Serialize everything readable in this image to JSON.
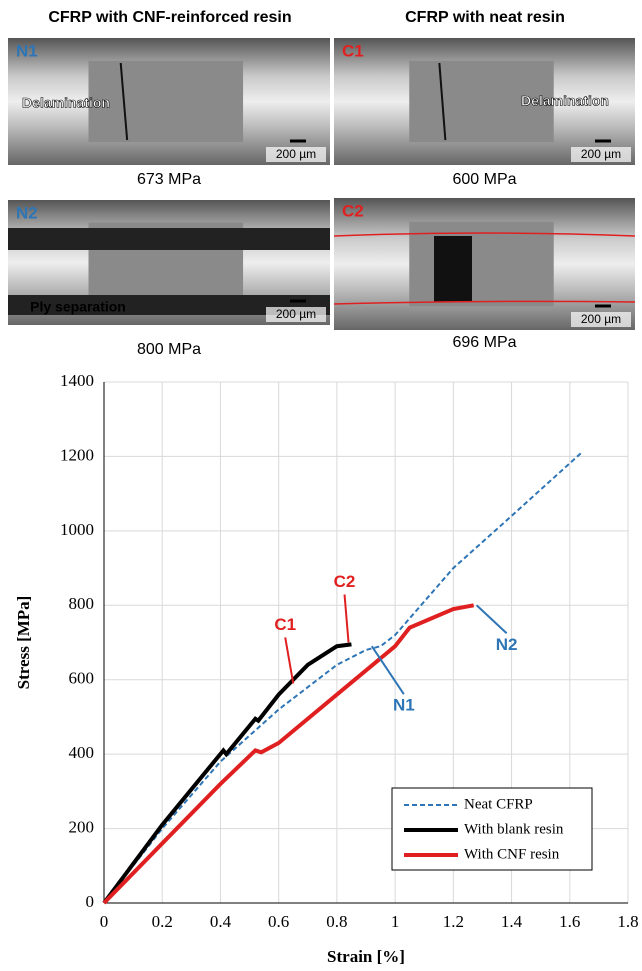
{
  "panels": {
    "left_header": "CFRP with CNF-reinforced resin",
    "right_header": "CFRP with neat resin",
    "items": [
      {
        "label": "N1",
        "color": "#2E75B6",
        "note": "Delamination",
        "scale": "200 µm",
        "caption": "673 MPa"
      },
      {
        "label": "C1",
        "color": "#E02020",
        "note": "Delamination",
        "scale": "200 µm",
        "caption": "600 MPa"
      },
      {
        "label": "N2",
        "color": "#2E75B6",
        "note": "Ply separation",
        "scale": "200 µm",
        "caption": "800 MPa"
      },
      {
        "label": "C2",
        "color": "#E02020",
        "scale": "200 µm",
        "caption": "696 MPa"
      }
    ]
  },
  "chart_data": {
    "type": "line",
    "xlabel": "Strain [%]",
    "ylabel": "Stress [MPa]",
    "xlim": [
      0,
      1.8
    ],
    "ylim": [
      0,
      1400
    ],
    "xticks": [
      0,
      0.2,
      0.4,
      0.6,
      0.8,
      1,
      1.2,
      1.4,
      1.6,
      1.8
    ],
    "yticks": [
      0,
      200,
      400,
      600,
      800,
      1000,
      1200,
      1400
    ],
    "grid": true,
    "legend": "lower right",
    "series": [
      {
        "name": "Neat CFRP",
        "color": "#2E75B6",
        "dashed": true,
        "x": [
          0,
          0.2,
          0.4,
          0.6,
          0.8,
          0.9,
          0.95,
          1.0,
          1.2,
          1.4,
          1.64
        ],
        "values": [
          0,
          200,
          380,
          520,
          640,
          680,
          690,
          720,
          900,
          1040,
          1210
        ]
      },
      {
        "name": "With blank resin",
        "color": "#000000",
        "dashed": false,
        "x": [
          0,
          0.2,
          0.41,
          0.42,
          0.52,
          0.53,
          0.6,
          0.7,
          0.8,
          0.85
        ],
        "values": [
          0,
          210,
          410,
          400,
          495,
          490,
          560,
          640,
          690,
          695
        ]
      },
      {
        "name": "With CNF resin",
        "color": "#E02020",
        "dashed": false,
        "x": [
          0,
          0.2,
          0.4,
          0.52,
          0.54,
          0.6,
          0.8,
          1.0,
          1.05,
          1.2,
          1.27
        ],
        "values": [
          0,
          160,
          320,
          410,
          405,
          430,
          560,
          690,
          740,
          790,
          800
        ]
      }
    ],
    "annotations": [
      {
        "text": "C1",
        "color": "#E02020",
        "x": 0.65,
        "y": 590
      },
      {
        "text": "C2",
        "color": "#E02020",
        "x": 0.84,
        "y": 700
      },
      {
        "text": "N1",
        "color": "#2E75B6",
        "x": 0.92,
        "y": 690
      },
      {
        "text": "N2",
        "color": "#2E75B6",
        "x": 1.28,
        "y": 800
      }
    ]
  }
}
